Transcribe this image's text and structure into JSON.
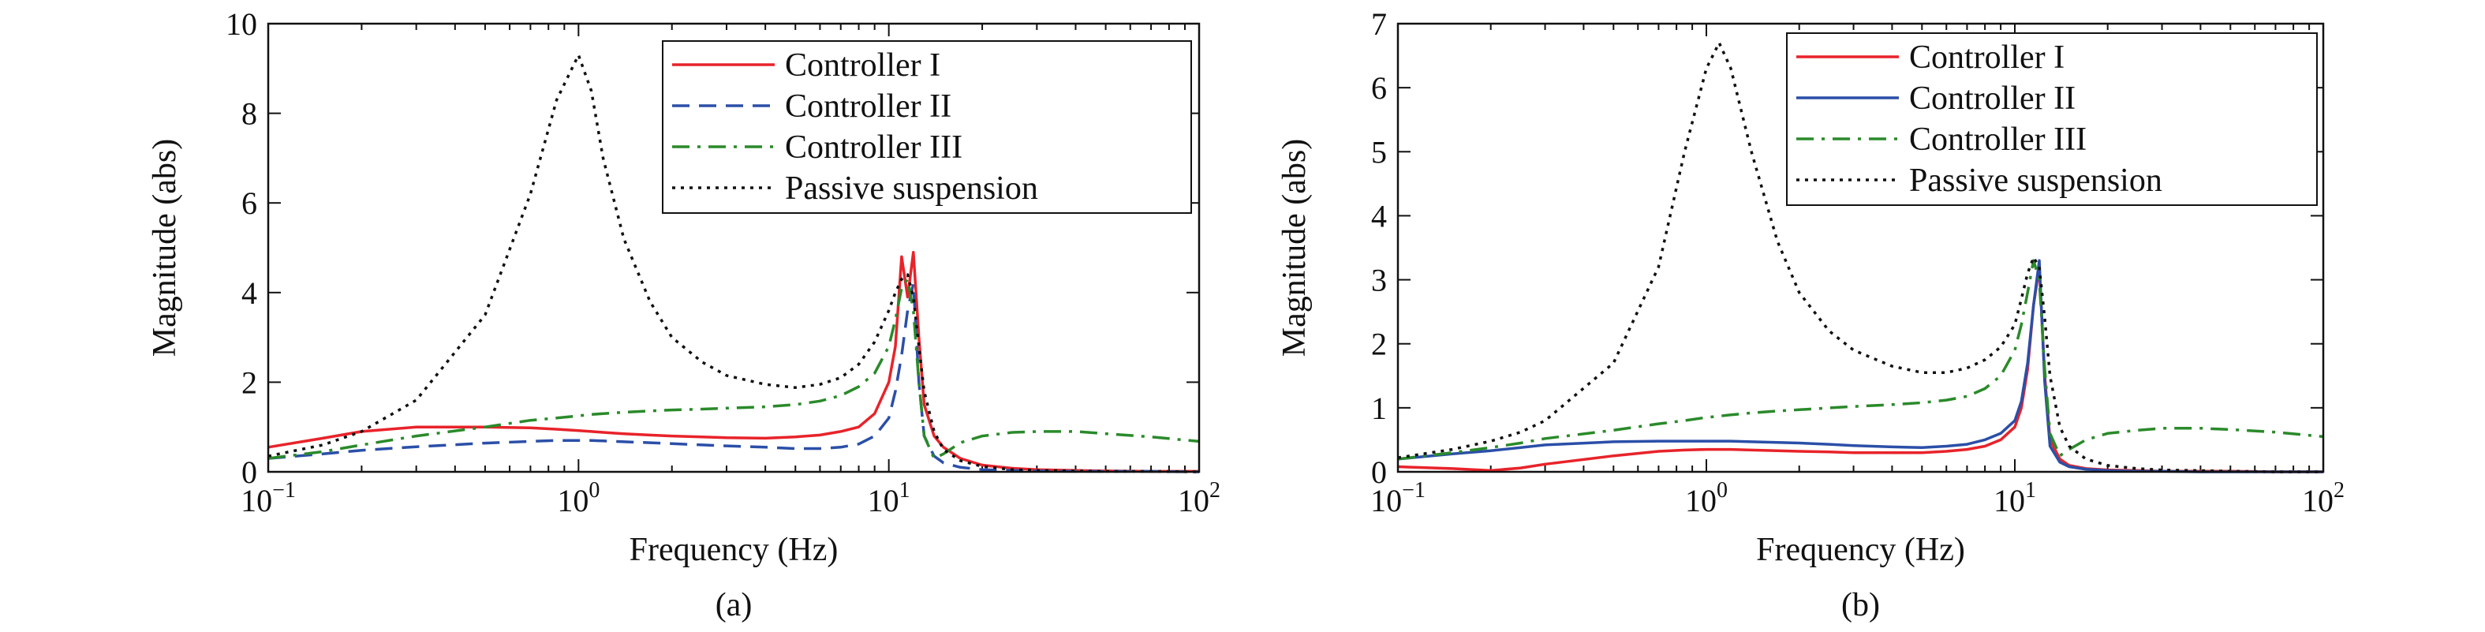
{
  "chart_data": [
    {
      "type": "line",
      "caption": "(a)",
      "xlabel": "Frequency (Hz)",
      "ylabel": "Magnitude (abs)",
      "xscale": "log",
      "xlim": [
        0.1,
        100
      ],
      "ylim": [
        0,
        10
      ],
      "xticks": [
        {
          "base": "10",
          "exp": "−1"
        },
        {
          "base": "10",
          "exp": "0"
        },
        {
          "base": "10",
          "exp": "1"
        },
        {
          "base": "10",
          "exp": "2"
        }
      ],
      "yticks": [
        "0",
        "2",
        "4",
        "6",
        "8",
        "10"
      ],
      "legend_position": "top-right",
      "x": [
        0.1,
        0.15,
        0.2,
        0.3,
        0.5,
        0.7,
        0.85,
        1.0,
        1.1,
        1.2,
        1.4,
        1.7,
        2.0,
        2.5,
        3.0,
        4.0,
        5.0,
        6.0,
        7.0,
        8.0,
        9.0,
        10.0,
        10.5,
        11.0,
        11.5,
        12.0,
        12.5,
        13.0,
        14.0,
        15.0,
        17.0,
        20.0,
        25.0,
        30.0,
        40.0,
        50.0,
        70.0,
        100.0
      ],
      "series": [
        {
          "name": "Controller I",
          "color": "#e8232a",
          "dash": "solid",
          "values": [
            0.55,
            0.75,
            0.9,
            1.0,
            1.0,
            0.98,
            0.95,
            0.92,
            0.9,
            0.88,
            0.85,
            0.82,
            0.8,
            0.78,
            0.76,
            0.75,
            0.78,
            0.82,
            0.9,
            1.0,
            1.3,
            2.0,
            2.8,
            4.8,
            3.9,
            4.9,
            3.0,
            1.5,
            0.8,
            0.55,
            0.3,
            0.15,
            0.08,
            0.05,
            0.03,
            0.02,
            0.01,
            0.01
          ]
        },
        {
          "name": "Controller II",
          "color": "#2b4fa8",
          "dash": "dashed",
          "values": [
            0.3,
            0.4,
            0.48,
            0.56,
            0.64,
            0.68,
            0.7,
            0.7,
            0.7,
            0.69,
            0.67,
            0.65,
            0.63,
            0.6,
            0.58,
            0.55,
            0.52,
            0.52,
            0.55,
            0.62,
            0.8,
            1.2,
            1.8,
            2.6,
            3.6,
            4.2,
            2.0,
            0.8,
            0.35,
            0.2,
            0.1,
            0.05,
            0.03,
            0.02,
            0.01,
            0.01,
            0.01,
            0.0
          ]
        },
        {
          "name": "Controller III",
          "color": "#2a8a2a",
          "dash": "dashdot",
          "values": [
            0.3,
            0.45,
            0.6,
            0.8,
            1.0,
            1.15,
            1.2,
            1.25,
            1.28,
            1.3,
            1.33,
            1.36,
            1.38,
            1.4,
            1.42,
            1.45,
            1.5,
            1.58,
            1.7,
            1.9,
            2.2,
            2.8,
            3.4,
            4.1,
            4.3,
            3.6,
            2.0,
            0.8,
            0.3,
            0.4,
            0.65,
            0.8,
            0.88,
            0.9,
            0.9,
            0.85,
            0.78,
            0.68
          ]
        },
        {
          "name": "Passive suspension",
          "color": "#111111",
          "dash": "dotted",
          "values": [
            0.35,
            0.6,
            0.9,
            1.6,
            3.5,
            6.2,
            8.3,
            9.3,
            8.5,
            7.0,
            5.2,
            3.8,
            3.0,
            2.45,
            2.15,
            1.95,
            1.88,
            1.95,
            2.1,
            2.4,
            2.9,
            3.6,
            4.0,
            4.3,
            4.4,
            3.9,
            2.8,
            1.8,
            0.9,
            0.5,
            0.25,
            0.12,
            0.05,
            0.03,
            0.02,
            0.01,
            0.01,
            0.0
          ]
        }
      ]
    },
    {
      "type": "line",
      "caption": "(b)",
      "xlabel": "Frequency (Hz)",
      "ylabel": "Magnitude (abs)",
      "xscale": "log",
      "xlim": [
        0.1,
        100
      ],
      "ylim": [
        0,
        7
      ],
      "xticks": [
        {
          "base": "10",
          "exp": "−1"
        },
        {
          "base": "10",
          "exp": "0"
        },
        {
          "base": "10",
          "exp": "1"
        },
        {
          "base": "10",
          "exp": "2"
        }
      ],
      "yticks": [
        "0",
        "1",
        "2",
        "3",
        "4",
        "5",
        "6",
        "7"
      ],
      "legend_position": "top-right",
      "x": [
        0.1,
        0.15,
        0.2,
        0.25,
        0.3,
        0.5,
        0.7,
        0.85,
        1.0,
        1.1,
        1.2,
        1.4,
        1.7,
        2.0,
        2.5,
        3.0,
        4.0,
        5.0,
        6.0,
        7.0,
        8.0,
        9.0,
        10.0,
        10.5,
        11.0,
        11.5,
        12.0,
        12.5,
        13.0,
        14.0,
        15.0,
        17.0,
        20.0,
        25.0,
        30.0,
        40.0,
        50.0,
        70.0,
        100.0
      ],
      "series": [
        {
          "name": "Controller I",
          "color": "#e8232a",
          "dash": "solid",
          "values": [
            0.08,
            0.05,
            0.02,
            0.06,
            0.12,
            0.25,
            0.32,
            0.34,
            0.35,
            0.35,
            0.35,
            0.34,
            0.33,
            0.32,
            0.31,
            0.3,
            0.3,
            0.3,
            0.32,
            0.35,
            0.4,
            0.5,
            0.7,
            1.0,
            1.6,
            2.6,
            3.2,
            1.5,
            0.5,
            0.2,
            0.1,
            0.05,
            0.03,
            0.02,
            0.01,
            0.01,
            0.01,
            0.0,
            0.0
          ]
        },
        {
          "name": "Controller II",
          "color": "#2b4fa8",
          "dash": "solid",
          "values": [
            0.2,
            0.28,
            0.33,
            0.38,
            0.42,
            0.47,
            0.48,
            0.48,
            0.48,
            0.48,
            0.48,
            0.47,
            0.46,
            0.45,
            0.43,
            0.41,
            0.39,
            0.38,
            0.4,
            0.43,
            0.5,
            0.6,
            0.8,
            1.1,
            1.7,
            2.6,
            3.3,
            1.4,
            0.4,
            0.15,
            0.08,
            0.04,
            0.02,
            0.01,
            0.01,
            0.0,
            0.0,
            0.0,
            0.0
          ]
        },
        {
          "name": "Controller III",
          "color": "#2a8a2a",
          "dash": "dashdot",
          "values": [
            0.2,
            0.3,
            0.38,
            0.45,
            0.52,
            0.65,
            0.75,
            0.8,
            0.85,
            0.87,
            0.89,
            0.92,
            0.95,
            0.97,
            1.0,
            1.02,
            1.05,
            1.08,
            1.12,
            1.18,
            1.3,
            1.5,
            1.9,
            2.3,
            2.8,
            3.3,
            3.0,
            1.6,
            0.6,
            0.25,
            0.35,
            0.5,
            0.6,
            0.65,
            0.68,
            0.68,
            0.66,
            0.62,
            0.55
          ]
        },
        {
          "name": "Passive suspension",
          "color": "#111111",
          "dash": "dotted",
          "values": [
            0.22,
            0.35,
            0.48,
            0.62,
            0.8,
            1.7,
            3.2,
            5.0,
            6.3,
            6.7,
            6.3,
            5.0,
            3.6,
            2.8,
            2.2,
            1.9,
            1.65,
            1.55,
            1.55,
            1.62,
            1.75,
            1.95,
            2.3,
            2.7,
            3.1,
            3.35,
            3.2,
            2.4,
            1.5,
            0.7,
            0.4,
            0.2,
            0.1,
            0.05,
            0.03,
            0.02,
            0.01,
            0.0,
            0.0
          ]
        }
      ]
    }
  ]
}
